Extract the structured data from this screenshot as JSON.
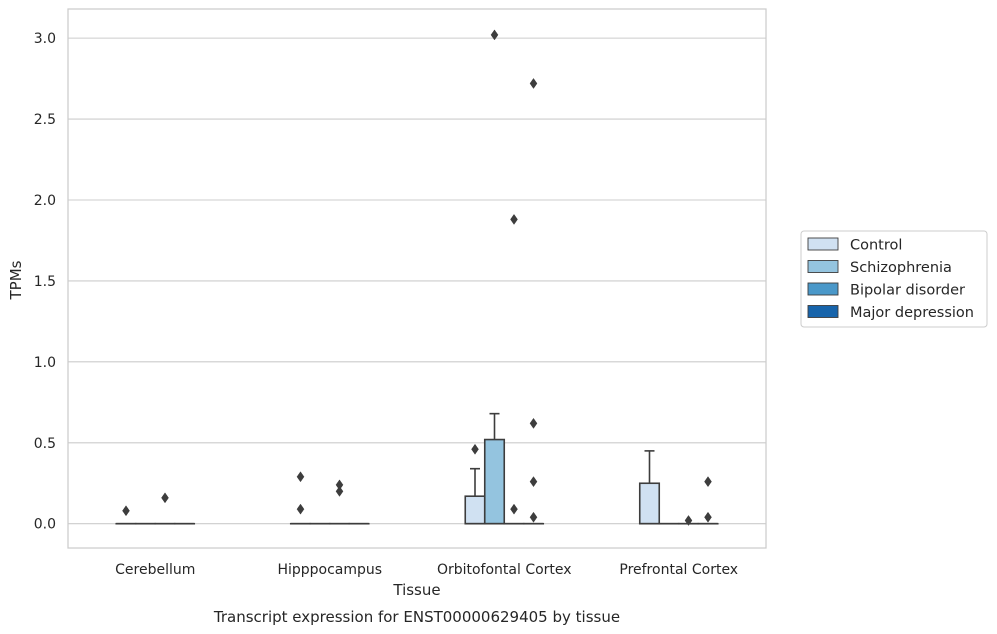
{
  "chart_data": {
    "type": "box",
    "caption": "Transcript expression for ENST00000629405 by tissue",
    "xlabel": "Tissue",
    "ylabel": "TPMs",
    "ylim": [
      -0.15,
      3.18
    ],
    "yticks": [
      0.0,
      0.5,
      1.0,
      1.5,
      2.0,
      2.5,
      3.0
    ],
    "ytick_labels": [
      "0.0",
      "0.5",
      "1.0",
      "1.5",
      "2.0",
      "2.5",
      "3.0"
    ],
    "grid": "horizontal",
    "legend_position": "right",
    "categories": [
      "Cerebellum",
      "Hipppocampus",
      "Orbitofontal Cortex",
      "Prefrontal Cortex"
    ],
    "series": [
      {
        "name": "Control",
        "color": "#d0e1f2",
        "boxes": [
          {
            "q1": 0,
            "median": 0,
            "q3": 0,
            "whisker_low": 0,
            "whisker_high": 0,
            "outliers": [
              0.08
            ]
          },
          {
            "q1": 0,
            "median": 0,
            "q3": 0,
            "whisker_low": 0,
            "whisker_high": 0,
            "outliers": [
              0.09,
              0.29
            ]
          },
          {
            "q1": 0,
            "median": 0,
            "q3": 0.17,
            "whisker_low": 0,
            "whisker_high": 0.34,
            "outliers": [
              0.46
            ]
          },
          {
            "q1": 0,
            "median": 0,
            "q3": 0.25,
            "whisker_low": 0,
            "whisker_high": 0.45,
            "outliers": []
          }
        ]
      },
      {
        "name": "Schizophrenia",
        "color": "#94c4df",
        "boxes": [
          {
            "q1": 0,
            "median": 0,
            "q3": 0,
            "whisker_low": 0,
            "whisker_high": 0,
            "outliers": []
          },
          {
            "q1": 0,
            "median": 0,
            "q3": 0,
            "whisker_low": 0,
            "whisker_high": 0,
            "outliers": []
          },
          {
            "q1": 0,
            "median": 0,
            "q3": 0.52,
            "whisker_low": 0,
            "whisker_high": 0.68,
            "outliers": [
              3.02
            ]
          },
          {
            "q1": 0,
            "median": 0,
            "q3": 0,
            "whisker_low": 0,
            "whisker_high": 0,
            "outliers": []
          }
        ]
      },
      {
        "name": "Bipolar disorder",
        "color": "#4a98c9",
        "boxes": [
          {
            "q1": 0,
            "median": 0,
            "q3": 0,
            "whisker_low": 0,
            "whisker_high": 0,
            "outliers": [
              0.16
            ]
          },
          {
            "q1": 0,
            "median": 0,
            "q3": 0,
            "whisker_low": 0,
            "whisker_high": 0,
            "outliers": [
              0.2,
              0.24
            ]
          },
          {
            "q1": 0,
            "median": 0,
            "q3": 0,
            "whisker_low": 0,
            "whisker_high": 0,
            "outliers": [
              0.09,
              1.88
            ]
          },
          {
            "q1": 0,
            "median": 0,
            "q3": 0,
            "whisker_low": 0,
            "whisker_high": 0,
            "outliers": [
              0.02
            ]
          }
        ]
      },
      {
        "name": "Major depression",
        "color": "#1764ab",
        "boxes": [
          {
            "q1": 0,
            "median": 0,
            "q3": 0,
            "whisker_low": 0,
            "whisker_high": 0,
            "outliers": []
          },
          {
            "q1": 0,
            "median": 0,
            "q3": 0,
            "whisker_low": 0,
            "whisker_high": 0,
            "outliers": []
          },
          {
            "q1": 0,
            "median": 0,
            "q3": 0,
            "whisker_low": 0,
            "whisker_high": 0,
            "outliers": [
              0.04,
              0.26,
              0.62,
              2.72
            ]
          },
          {
            "q1": 0,
            "median": 0,
            "q3": 0,
            "whisker_low": 0,
            "whisker_high": 0,
            "outliers": [
              0.04,
              0.26
            ]
          }
        ]
      }
    ]
  }
}
